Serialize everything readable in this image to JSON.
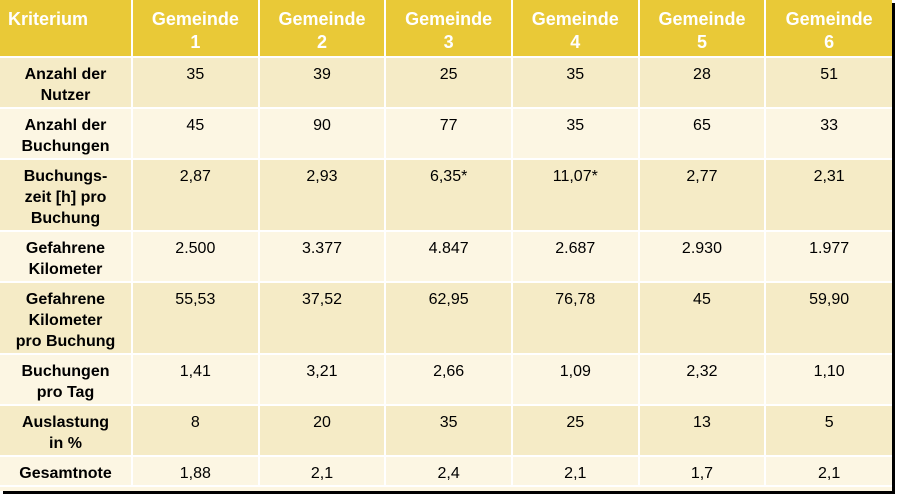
{
  "table": {
    "header": {
      "criterion": "Kriterium",
      "columns": [
        "Gemeinde\n1",
        "Gemeinde\n2",
        "Gemeinde\n3",
        "Gemeinde\n4",
        "Gemeinde\n5",
        "Gemeinde\n6"
      ]
    },
    "rows": [
      {
        "label": "Anzahl der\nNutzer",
        "values": [
          "35",
          "39",
          "25",
          "35",
          "28",
          "51"
        ]
      },
      {
        "label": "Anzahl der\nBuchungen",
        "values": [
          "45",
          "90",
          "77",
          "35",
          "65",
          "33"
        ]
      },
      {
        "label": "Buchungs-\nzeit [h] pro\nBuchung",
        "values": [
          "2,87",
          "2,93",
          "6,35*",
          "11,07*",
          "2,77",
          "2,31"
        ]
      },
      {
        "label": "Gefahrene\nKilometer",
        "values": [
          "2.500",
          "3.377",
          "4.847",
          "2.687",
          "2.930",
          "1.977"
        ]
      },
      {
        "label": "Gefahrene\nKilometer\npro Buchung",
        "values": [
          "55,53",
          "37,52",
          "62,95",
          "76,78",
          "45",
          "59,90"
        ]
      },
      {
        "label": "Buchungen\npro Tag",
        "values": [
          "1,41",
          "3,21",
          "2,66",
          "1,09",
          "2,32",
          "1,10"
        ]
      },
      {
        "label": "Auslastung\nin %",
        "values": [
          "8",
          "20",
          "35",
          "25",
          "13",
          "5"
        ]
      },
      {
        "label": "Gesamtnote",
        "values": [
          "1,88",
          "2,1",
          "2,4",
          "2,1",
          "1,7",
          "2,1"
        ]
      }
    ]
  },
  "colors": {
    "header_bg": "#e9c937",
    "header_text": "#ffffff",
    "row_odd": "#f5ebc6",
    "row_even": "#fcf6e3"
  }
}
